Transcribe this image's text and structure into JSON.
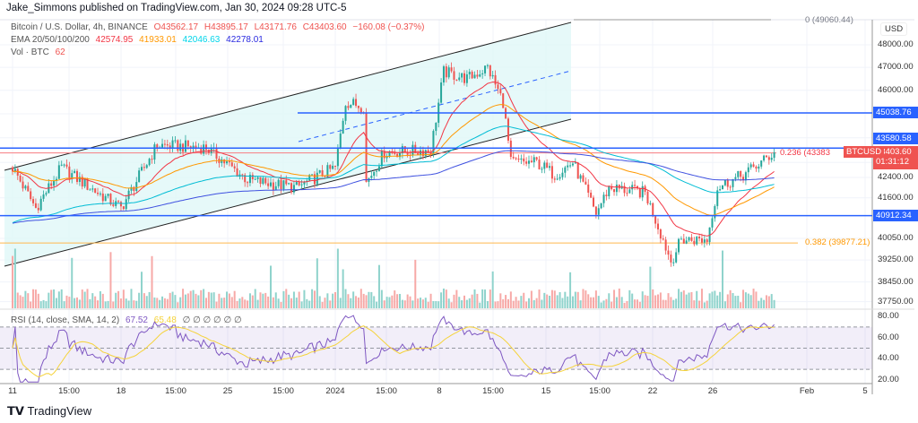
{
  "header": {
    "published": "Jake_Simmons published on TradingView.com, Jan 30, 2024 09:28 UTC-5"
  },
  "legend": {
    "symbol": "Bitcoin / U.S. Dollar, 4h, BINANCE",
    "o": "O43562.17",
    "h": "H43895.17",
    "l": "L43171.76",
    "c": "C43403.60",
    "chg": "−160.08 (−0.37%)",
    "ema_label": "EMA 20/50/100/200",
    "ema20": "42574.95",
    "ema50": "41933.01",
    "ema100": "42046.63",
    "ema200": "42278.01",
    "vol_label": "Vol · BTC",
    "vol": "62",
    "rsi_label": "RSI (14, close, SMA, 14, 2)",
    "rsi": "67.52",
    "rsi_sma": "65.48",
    "rsi_empty": "∅ ∅ ∅ ∅ ∅ ∅"
  },
  "colors": {
    "up": "#26a69a",
    "down": "#ef5350",
    "ema20": "#f23645",
    "ema50": "#ff9800",
    "ema100": "#00bcd4",
    "ema200": "#3f51e0",
    "level": "#2962ff",
    "rsi": "#7e57c2",
    "rsi_sma": "#f5d33b"
  },
  "price_axis": {
    "currency": "USD",
    "ticks": [
      "48000.00",
      "47000.00",
      "46000.00",
      "42400.00",
      "41600.00",
      "40050.00",
      "39250.00",
      "38450.00",
      "37750.00"
    ],
    "tick_values": [
      48000,
      47000,
      46000,
      42400,
      41600,
      40050,
      39250,
      38450,
      37750
    ]
  },
  "rsi_axis": {
    "ticks": [
      "80.00",
      "60.00",
      "40.00",
      "20.00"
    ],
    "tick_values": [
      80,
      60,
      40,
      20
    ]
  },
  "levels": [
    {
      "value": 45038.76,
      "label": "45038.76"
    },
    {
      "value": 43580.58,
      "label": "43580.58"
    },
    {
      "value": 40912.34,
      "label": "40912.34"
    }
  ],
  "last_price": {
    "symbol": "BTCUSD",
    "value": "43403.60",
    "countdown": "01:31:12"
  },
  "fib": [
    {
      "label": "0 (49060.44)",
      "value": 49060.44
    },
    {
      "label": "0.236 (43383",
      "value": 43383
    },
    {
      "label": "0.382 (39877.21)",
      "value": 39877.21
    }
  ],
  "time_axis": [
    "11",
    "15:00",
    "18",
    "15:00",
    "25",
    "15:00",
    "2024",
    "15:00",
    "8",
    "15:00",
    "15",
    "15:00",
    "22",
    "26",
    "Feb",
    "5"
  ],
  "brand": "TradingView",
  "chart_data": {
    "type": "candlestick",
    "title": "Bitcoin / U.S. Dollar, 4h, BINANCE",
    "scale": "log",
    "ylim": [
      37300,
      49300
    ],
    "x_unit": "4h bar index from Dec 11 2023",
    "close_keypoints": [
      [
        0,
        42800
      ],
      [
        9,
        41200
      ],
      [
        19,
        42800
      ],
      [
        30,
        42000
      ],
      [
        42,
        41200
      ],
      [
        56,
        43700
      ],
      [
        75,
        43600
      ],
      [
        91,
        42300
      ],
      [
        110,
        42000
      ],
      [
        125,
        42800
      ],
      [
        129,
        45500
      ],
      [
        136,
        45300
      ],
      [
        137,
        42200
      ],
      [
        144,
        43400
      ],
      [
        162,
        43500
      ],
      [
        167,
        46800
      ],
      [
        176,
        46500
      ],
      [
        184,
        47000
      ],
      [
        190,
        45500
      ],
      [
        193,
        43000
      ],
      [
        203,
        43000
      ],
      [
        210,
        42500
      ],
      [
        217,
        43000
      ],
      [
        226,
        41000
      ],
      [
        231,
        42000
      ],
      [
        245,
        41800
      ],
      [
        252,
        40000
      ],
      [
        255,
        39200
      ],
      [
        259,
        40000
      ],
      [
        269,
        40000
      ],
      [
        273,
        42000
      ],
      [
        283,
        42500
      ],
      [
        290,
        43000
      ],
      [
        295,
        43403.6
      ]
    ],
    "indicators": [
      "EMA 20",
      "EMA 50",
      "EMA 100",
      "EMA 200",
      "Volume",
      "RSI 14",
      "RSI SMA 14"
    ]
  }
}
